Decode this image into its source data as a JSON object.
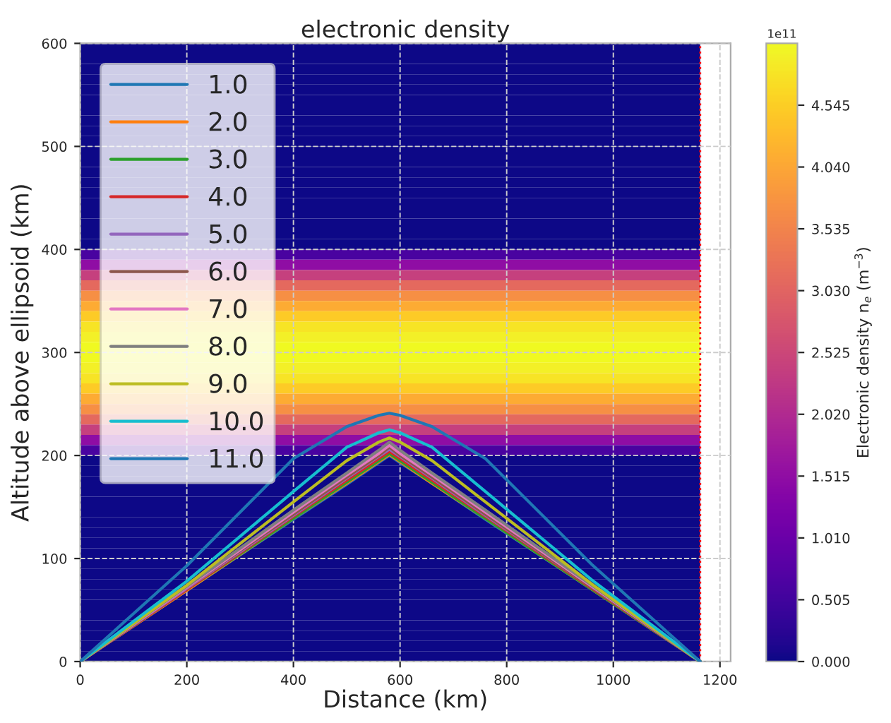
{
  "chart_data": {
    "type": "heatmap",
    "title": "electronic density",
    "xlabel": "Distance (km)",
    "ylabel": "Altitude above ellipsoid (km)",
    "clabel": "Electronic density n$_{e}$ (m$^{−3}$)",
    "annotations": [
      "1e11"
    ],
    "cells": [
      [
        0
      ],
      [
        0
      ],
      [
        0
      ],
      [
        0
      ],
      [
        0
      ],
      [
        0
      ],
      [
        0
      ],
      [
        0
      ],
      [
        0
      ],
      [
        0
      ],
      [
        0
      ],
      [
        0
      ],
      [
        0
      ],
      [
        0
      ],
      [
        0
      ],
      [
        0
      ],
      [
        0
      ],
      [
        0
      ],
      [
        0
      ],
      [
        0
      ],
      [
        0.6
      ],
      [
        1.5
      ],
      [
        2.4
      ],
      [
        3.1
      ],
      [
        3.7
      ],
      [
        4.1
      ],
      [
        4.5
      ],
      [
        4.8
      ],
      [
        4.95
      ],
      [
        5.05
      ],
      [
        5.05
      ],
      [
        4.95
      ],
      [
        4.8
      ],
      [
        4.5
      ],
      [
        4.1
      ],
      [
        3.7
      ],
      [
        3.1
      ],
      [
        2.4
      ],
      [
        1.5
      ],
      [
        0.6
      ],
      [
        0
      ],
      [
        0
      ],
      [
        0
      ],
      [
        0
      ],
      [
        0
      ],
      [
        0
      ],
      [
        0
      ],
      [
        0
      ],
      [
        0
      ],
      [
        0
      ],
      [
        0
      ],
      [
        0
      ],
      [
        0
      ],
      [
        0
      ],
      [
        0
      ],
      [
        0
      ],
      [
        0
      ],
      [
        0
      ],
      [
        0
      ],
      [
        0
      ]
    ],
    "clim": [
      0,
      5.05
    ],
    "cticks": [
      {
        "value": 0,
        "label": "0.000"
      },
      {
        "value": 0.505,
        "label": "0.505"
      },
      {
        "value": 1.01,
        "label": "1.010"
      },
      {
        "value": 1.515,
        "label": "1.515"
      },
      {
        "value": 2.02,
        "label": "2.020"
      },
      {
        "value": 2.525,
        "label": "2.525"
      },
      {
        "value": 3.03,
        "label": "3.030"
      },
      {
        "value": 3.535,
        "label": "3.535"
      },
      {
        "value": 4.04,
        "label": "4.040"
      },
      {
        "value": 4.545,
        "label": "4.545"
      }
    ],
    "xlim": [
      0,
      1220
    ],
    "xticks": [
      0,
      200,
      400,
      600,
      800,
      1000,
      1200
    ],
    "ylim": [
      0,
      600
    ],
    "yticks": [
      0,
      100,
      200,
      300,
      400,
      500,
      600
    ],
    "grid": true,
    "legend": "top left",
    "ref_lines": [
      {
        "axis": "x",
        "value": 1163,
        "color": "#ff0000",
        "line_style": "dotted"
      }
    ],
    "series": [
      {
        "type": "line",
        "name": "1.0",
        "color": "#1f77b4",
        "x": [
          0,
          200,
          400,
          500,
          560,
          580,
          600,
          660,
          760,
          960,
          1163
        ],
        "values": [
          0,
          69,
          138,
          172,
          193,
          200,
          193,
          173,
          138,
          70,
          0
        ]
      },
      {
        "type": "line",
        "name": "2.0",
        "color": "#ff7f0e",
        "x": [
          0,
          200,
          400,
          500,
          560,
          580,
          600,
          660,
          760,
          960,
          1163
        ],
        "values": [
          0,
          69,
          139,
          173,
          194,
          201,
          194,
          173,
          139,
          70,
          0
        ]
      },
      {
        "type": "line",
        "name": "3.0",
        "color": "#2ca02c",
        "x": [
          0,
          200,
          400,
          500,
          560,
          580,
          600,
          660,
          760,
          960,
          1163
        ],
        "values": [
          0,
          70,
          139,
          174,
          195,
          202,
          195,
          174,
          139,
          70,
          0
        ]
      },
      {
        "type": "line",
        "name": "4.0",
        "color": "#d62728",
        "x": [
          0,
          200,
          400,
          500,
          560,
          580,
          600,
          660,
          760,
          960,
          1163
        ],
        "values": [
          0,
          70,
          141,
          176,
          197,
          204,
          197,
          176,
          141,
          71,
          0
        ]
      },
      {
        "type": "line",
        "name": "5.0",
        "color": "#9467bd",
        "x": [
          0,
          200,
          400,
          500,
          560,
          580,
          600,
          660,
          760,
          960,
          1163
        ],
        "values": [
          0,
          71,
          142,
          178,
          199,
          206,
          199,
          178,
          142,
          72,
          0
        ]
      },
      {
        "type": "line",
        "name": "6.0",
        "color": "#8c564b",
        "x": [
          0,
          200,
          400,
          500,
          560,
          580,
          600,
          660,
          760,
          960,
          1163
        ],
        "values": [
          0,
          72,
          143,
          179,
          200,
          208,
          200,
          179,
          143,
          72,
          0
        ]
      },
      {
        "type": "line",
        "name": "7.0",
        "color": "#e377c2",
        "x": [
          0,
          200,
          400,
          500,
          560,
          580,
          600,
          660,
          760,
          960,
          1163
        ],
        "values": [
          0,
          72,
          145,
          181,
          202,
          210,
          202,
          181,
          145,
          73,
          0
        ]
      },
      {
        "type": "line",
        "name": "8.0",
        "color": "#7f7f7f",
        "x": [
          0,
          200,
          400,
          500,
          560,
          580,
          600,
          660,
          760,
          960,
          1163
        ],
        "values": [
          0,
          73,
          147,
          183,
          205,
          213,
          205,
          183,
          147,
          74,
          0
        ]
      },
      {
        "type": "line",
        "name": "9.0",
        "color": "#bcbd22",
        "x": [
          0,
          200,
          400,
          500,
          560,
          580,
          600,
          660,
          760,
          960,
          1163
        ],
        "values": [
          0,
          74,
          155,
          195,
          213,
          217,
          213,
          195,
          155,
          75,
          0
        ]
      },
      {
        "type": "line",
        "name": "10.0",
        "color": "#17becf",
        "x": [
          0,
          200,
          400,
          500,
          560,
          580,
          600,
          660,
          760,
          960,
          1163
        ],
        "values": [
          0,
          78,
          165,
          208,
          222,
          225,
          222,
          208,
          165,
          79,
          0
        ]
      },
      {
        "type": "line",
        "name": "11.0",
        "color": "#1f77b4",
        "x": [
          0,
          200,
          400,
          500,
          560,
          580,
          600,
          660,
          760,
          960,
          1163
        ],
        "values": [
          0,
          93,
          197,
          228,
          239,
          241,
          239,
          228,
          197,
          94,
          0
        ]
      }
    ]
  }
}
